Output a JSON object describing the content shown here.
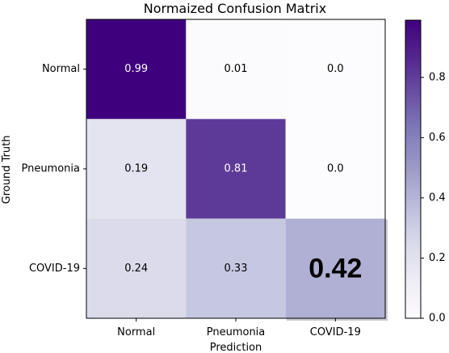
{
  "chart_data": {
    "type": "heatmap",
    "title": "Normaized Confusion Matrix",
    "xlabel": "Prediction",
    "ylabel": "Ground Truth",
    "x_categories": [
      "Normal",
      "Pneumonia",
      "COVID-19"
    ],
    "y_categories": [
      "Normal",
      "Pneumonia",
      "COVID-19"
    ],
    "matrix": [
      [
        0.99,
        0.01,
        0.0
      ],
      [
        0.19,
        0.81,
        0.0
      ],
      [
        0.24,
        0.33,
        0.42
      ]
    ],
    "cell_labels": [
      [
        "0.99",
        "0.01",
        "0.0"
      ],
      [
        "0.19",
        "0.81",
        "0.0"
      ],
      [
        "0.24",
        "0.33",
        "0.42"
      ]
    ],
    "emphasized_cell": {
      "row": 2,
      "col": 2
    },
    "colormap": "Purples",
    "colorbar": {
      "range": [
        0.0,
        0.99
      ],
      "ticks": [
        0.0,
        0.2,
        0.4,
        0.6,
        0.8
      ],
      "tick_labels": [
        "0.0",
        "0.2",
        "0.4",
        "0.6",
        "0.8"
      ]
    }
  }
}
